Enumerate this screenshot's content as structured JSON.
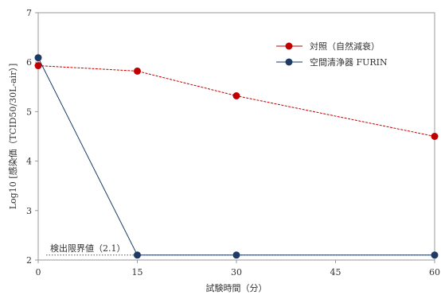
{
  "chart_data": {
    "type": "line",
    "xlabel": "試験時間（分）",
    "ylabel": "Log10 [感染価（TCID50/30L-air）]",
    "x": [
      0,
      15,
      30,
      60
    ],
    "xticks": [
      0,
      15,
      30,
      45,
      60
    ],
    "yticks": [
      2,
      3,
      4,
      5,
      6,
      7
    ],
    "xlim": [
      0,
      60
    ],
    "ylim": [
      2,
      7
    ],
    "grid": false,
    "legend_position": "top-right",
    "series": [
      {
        "name": "対照（自然減衰）",
        "color": "#c00000",
        "x": [
          0,
          15,
          30,
          60
        ],
        "values": [
          5.93,
          5.82,
          5.32,
          4.5
        ]
      },
      {
        "name": "空間清浄器 FURIN",
        "color": "#1f3b63",
        "x": [
          0,
          15,
          30,
          60
        ],
        "values": [
          6.09,
          2.1,
          2.1,
          2.1
        ]
      }
    ],
    "annotations": [
      {
        "text": "検出限界値（2.1）",
        "y": 2.1
      }
    ]
  }
}
